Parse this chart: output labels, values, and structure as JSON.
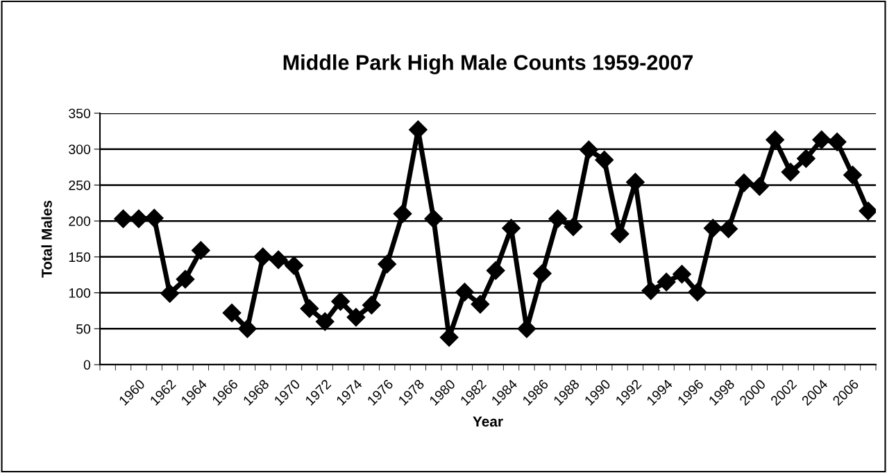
{
  "chart_data": {
    "type": "line",
    "title": "Middle Park High Male Counts 1959-2007",
    "xlabel": "Year",
    "ylabel": "Total Males",
    "categories": [
      null,
      null,
      "1960",
      null,
      "1962",
      null,
      "1964",
      null,
      "1966",
      null,
      "1968",
      null,
      "1970",
      null,
      "1972",
      null,
      "1974",
      null,
      "1976",
      null,
      "1978",
      null,
      "1980",
      null,
      "1982",
      null,
      "1984",
      null,
      "1986",
      null,
      "1988",
      null,
      "1990",
      null,
      "1992",
      null,
      "1994",
      null,
      "1996",
      null,
      "1998",
      null,
      "2000",
      null,
      "2002",
      null,
      "2004",
      null,
      "2006",
      null
    ],
    "series": [
      {
        "color": "#000000",
        "values": [
          null,
          203,
          203,
          204,
          99,
          119,
          159,
          null,
          72,
          50,
          150,
          146,
          138,
          78,
          60,
          88,
          66,
          83,
          140,
          210,
          327,
          203,
          38,
          101,
          84,
          131,
          190,
          50,
          127,
          203,
          192,
          299,
          285,
          182,
          254,
          103,
          115,
          126,
          101,
          190,
          189,
          253,
          248,
          313,
          268,
          287,
          313,
          310,
          264,
          214
        ]
      }
    ],
    "ylim": [
      0,
      350
    ],
    "yticks": [
      0,
      50,
      100,
      150,
      200,
      250,
      300,
      350
    ],
    "grid": "y",
    "marker": "diamond",
    "line_style": "solid"
  }
}
